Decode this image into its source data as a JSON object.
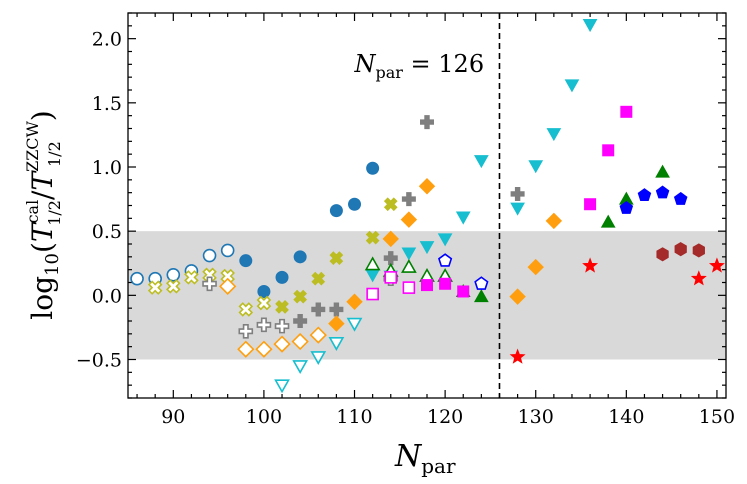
{
  "chart_data": {
    "type": "scatter",
    "title": "",
    "xlabel": "N_par",
    "ylabel": "log10(T^cal_1/2 / T^ZZCW_1/2)",
    "xlim": [
      85,
      151
    ],
    "ylim": [
      -0.8,
      2.2
    ],
    "xticks": [
      90,
      100,
      110,
      120,
      130,
      140,
      150
    ],
    "yticks": [
      -0.5,
      0.0,
      0.5,
      1.0,
      1.5,
      2.0
    ],
    "xticklabels": [
      "90",
      "100",
      "110",
      "120",
      "130",
      "140",
      "150"
    ],
    "yticklabels": [
      "−0.5",
      "0.0",
      "0.5",
      "1.0",
      "1.5",
      "2.0"
    ],
    "shaded_band": [
      -0.5,
      0.5
    ],
    "vline": {
      "x": 126,
      "label": "N_par = 126"
    },
    "grid": false,
    "series": [
      {
        "color": "#1f77b4",
        "marker": "circle",
        "filled": false,
        "points": [
          [
            86,
            0.13
          ],
          [
            88,
            0.13
          ],
          [
            90,
            0.16
          ],
          [
            92,
            0.19
          ],
          [
            94,
            0.31
          ],
          [
            96,
            0.35
          ]
        ]
      },
      {
        "color": "#1f77b4",
        "marker": "circle",
        "filled": true,
        "points": [
          [
            98,
            0.27
          ],
          [
            100,
            0.03
          ],
          [
            102,
            0.14
          ],
          [
            104,
            0.3
          ],
          [
            108,
            0.66
          ],
          [
            110,
            0.71
          ],
          [
            112,
            0.99
          ]
        ]
      },
      {
        "color": "#bcbd22",
        "marker": "x",
        "filled": false,
        "points": [
          [
            88,
            0.06
          ],
          [
            90,
            0.07
          ],
          [
            92,
            0.14
          ],
          [
            94,
            0.16
          ],
          [
            96,
            0.15
          ],
          [
            98,
            -0.11
          ],
          [
            100,
            -0.06
          ]
        ]
      },
      {
        "color": "#bcbd22",
        "marker": "x",
        "filled": true,
        "points": [
          [
            102,
            -0.09
          ],
          [
            104,
            -0.01
          ],
          [
            106,
            0.13
          ],
          [
            108,
            0.29
          ],
          [
            112,
            0.45
          ],
          [
            114,
            0.71
          ]
        ]
      },
      {
        "color": "#7f7f7f",
        "marker": "plus",
        "filled": false,
        "points": [
          [
            94,
            0.09
          ],
          [
            98,
            -0.28
          ],
          [
            100,
            -0.23
          ],
          [
            102,
            -0.24
          ],
          [
            114,
            0.13
          ]
        ]
      },
      {
        "color": "#7f7f7f",
        "marker": "plus",
        "filled": true,
        "points": [
          [
            104,
            -0.2
          ],
          [
            106,
            -0.11
          ],
          [
            108,
            -0.11
          ],
          [
            114,
            0.29
          ],
          [
            116,
            0.75
          ],
          [
            118,
            1.35
          ],
          [
            128,
            0.79
          ]
        ]
      },
      {
        "color": "#ff9f10",
        "marker": "diamond",
        "filled": false,
        "points": [
          [
            96,
            0.07
          ],
          [
            98,
            -0.42
          ],
          [
            100,
            -0.42
          ],
          [
            102,
            -0.38
          ],
          [
            104,
            -0.36
          ],
          [
            106,
            -0.31
          ]
        ]
      },
      {
        "color": "#ff9f10",
        "marker": "diamond",
        "filled": true,
        "points": [
          [
            108,
            -0.22
          ],
          [
            110,
            -0.05
          ],
          [
            114,
            0.44
          ],
          [
            116,
            0.59
          ],
          [
            118,
            0.85
          ],
          [
            128,
            -0.01
          ],
          [
            130,
            0.22
          ],
          [
            132,
            0.58
          ]
        ]
      },
      {
        "color": "#17becf",
        "marker": "triangle-down",
        "filled": false,
        "points": [
          [
            102,
            -0.7
          ],
          [
            104,
            -0.55
          ],
          [
            106,
            -0.48
          ],
          [
            108,
            -0.37
          ],
          [
            110,
            -0.22
          ]
        ]
      },
      {
        "color": "#17becf",
        "marker": "triangle-down",
        "filled": true,
        "points": [
          [
            112,
            0.16
          ],
          [
            114,
            0.15
          ],
          [
            116,
            0.33
          ],
          [
            118,
            0.38
          ],
          [
            120,
            0.44
          ],
          [
            122,
            0.61
          ],
          [
            124,
            1.05
          ],
          [
            128,
            0.68
          ],
          [
            130,
            1.01
          ],
          [
            132,
            1.26
          ],
          [
            134,
            1.64
          ],
          [
            136,
            2.11
          ]
        ]
      },
      {
        "color": "#008000",
        "marker": "triangle-up",
        "filled": false,
        "points": [
          [
            112,
            0.24
          ],
          [
            114,
            0.19
          ],
          [
            116,
            0.22
          ],
          [
            118,
            0.15
          ],
          [
            120,
            0.15
          ]
        ]
      },
      {
        "color": "#008000",
        "marker": "triangle-up",
        "filled": true,
        "points": [
          [
            122,
            0.03
          ],
          [
            124,
            -0.01
          ],
          [
            138,
            0.57
          ],
          [
            140,
            0.75
          ],
          [
            144,
            0.96
          ]
        ]
      },
      {
        "color": "#ff00ff",
        "marker": "square",
        "filled": false,
        "points": [
          [
            112,
            0.01
          ],
          [
            114,
            0.14
          ],
          [
            116,
            0.06
          ]
        ]
      },
      {
        "color": "#ff00ff",
        "marker": "square",
        "filled": true,
        "points": [
          [
            118,
            0.08
          ],
          [
            120,
            0.09
          ],
          [
            122,
            0.03
          ],
          [
            136,
            0.71
          ],
          [
            138,
            1.13
          ],
          [
            140,
            1.43
          ]
        ]
      },
      {
        "color": "#0000ff",
        "marker": "pentagon",
        "filled": false,
        "points": [
          [
            120,
            0.27
          ],
          [
            124,
            0.09
          ]
        ]
      },
      {
        "color": "#0000ff",
        "marker": "pentagon",
        "filled": true,
        "points": [
          [
            140,
            0.68
          ],
          [
            142,
            0.78
          ],
          [
            144,
            0.8
          ],
          [
            146,
            0.75
          ]
        ]
      },
      {
        "color": "#ff0000",
        "marker": "star",
        "filled": true,
        "points": [
          [
            128,
            -0.48
          ],
          [
            136,
            0.23
          ],
          [
            148,
            0.13
          ],
          [
            150,
            0.23
          ]
        ]
      },
      {
        "color": "#a52a2a",
        "marker": "hexagon",
        "filled": true,
        "points": [
          [
            144,
            0.32
          ],
          [
            146,
            0.36
          ],
          [
            148,
            0.35
          ]
        ]
      }
    ]
  }
}
